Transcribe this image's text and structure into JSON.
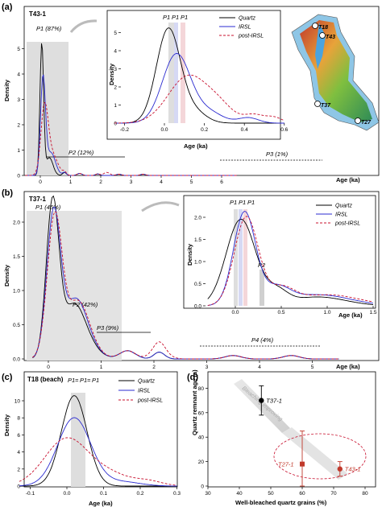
{
  "colors": {
    "quartz": "#000000",
    "irsl": "#2b2bd0",
    "post_irsl": "#c8102e",
    "shade": "#dedede",
    "map_sea": "#8ec6e6"
  },
  "legend": {
    "quartz": "Quartz",
    "irsl": "IRSL",
    "post_irsl": "post-IRSL"
  },
  "panels": {
    "a": {
      "label": "(a)",
      "sample": "T43-1",
      "p1": "P1 (87%)",
      "p2": "P2 (12%)",
      "p3": "P3 (1%)",
      "xlabel": "Age (ka)",
      "ylabel": "Density",
      "xticks": [
        "0",
        "1",
        "2",
        "3",
        "4",
        "5",
        "6"
      ],
      "yticks": [
        "0",
        "1",
        "2",
        "3",
        "4",
        "5"
      ],
      "inset": {
        "xlabel": "Age (ka)",
        "ylabel": "Density",
        "xticks": [
          "-0.2",
          "0.0",
          "0.2",
          "0.4",
          "0.6"
        ],
        "yticks": [
          "0",
          "1",
          "2",
          "3",
          "4",
          "5"
        ],
        "p_labels": [
          "P1",
          "P1",
          "P1"
        ]
      }
    },
    "b": {
      "label": "(b)",
      "sample": "T37-1",
      "p1": "P1 (45%)",
      "p2": "P2 (42%)",
      "p3": "P3 (9%)",
      "p4": "P4 (4%)",
      "xlabel": "Age (ka)",
      "ylabel": "Density",
      "xticks": [
        "0",
        "1",
        "2",
        "3",
        "4",
        "5"
      ],
      "yticks": [
        "0.0",
        "0.5",
        "1.0",
        "1.5",
        "2.0"
      ],
      "inset": {
        "xlabel": "Age (ka)",
        "ylabel": "Density",
        "xticks": [
          "0.0",
          "0.5",
          "1.0",
          "1.5"
        ],
        "yticks": [
          "0.0",
          "0.5",
          "1.0",
          "1.5",
          "2.0"
        ],
        "p_labels": [
          "P1",
          "P1",
          "P1"
        ],
        "p2": "P2"
      }
    },
    "c": {
      "label": "(c)",
      "sample": "T18 (beach)",
      "p_labels": [
        "P1",
        "=",
        "P1",
        "=",
        "P1"
      ],
      "xlabel": "Age (ka)",
      "ylabel": "Density",
      "xticks": [
        "-0.1",
        "0.0",
        "0.1",
        "0.2",
        "0.3"
      ],
      "yticks": [
        "0",
        "2",
        "4",
        "6",
        "8",
        "10"
      ]
    },
    "d": {
      "label": "(d)",
      "xlabel": "Well-bleached quartz grains (%)",
      "ylabel": "Quartz remnant age (a)",
      "xticks": [
        "30",
        "40",
        "50",
        "60",
        "70",
        "80"
      ],
      "yticks": [
        "0",
        "20",
        "40",
        "60",
        "80"
      ],
      "arrow_text": "Bleaching improving",
      "points": [
        {
          "name": "T37-1",
          "x": 47,
          "y": 70,
          "err": 12,
          "color": "#000000"
        },
        {
          "name": "T27-1",
          "x": 60,
          "y": 18,
          "err": 27,
          "color": "#c0392b"
        },
        {
          "name": "T43-1",
          "x": 72,
          "y": 14,
          "err": 6,
          "color": "#c0392b"
        }
      ]
    }
  },
  "map": {
    "labels": [
      "T18",
      "T43",
      "T37",
      "T27"
    ]
  },
  "chart_data": [
    {
      "type": "line",
      "panel": "a",
      "title": "T43-1",
      "xlabel": "Age (ka)",
      "ylabel": "Density",
      "xlim": [
        -0.5,
        6.8
      ],
      "ylim": [
        0,
        5.6
      ],
      "series": [
        {
          "name": "Quartz",
          "peak_x": 0.05,
          "peak_y": 5.2
        },
        {
          "name": "IRSL",
          "peak_x": 0.1,
          "peak_y": 3.8
        },
        {
          "name": "post-IRSL",
          "peak_x": 0.15,
          "peak_y": 2.6
        }
      ]
    },
    {
      "type": "line",
      "panel": "a-inset",
      "xlabel": "Age (ka)",
      "ylabel": "Density",
      "xlim": [
        -0.3,
        0.6
      ],
      "ylim": [
        0,
        5.5
      ],
      "series": [
        {
          "name": "Quartz",
          "peak_x": 0.02,
          "peak_y": 5.2
        },
        {
          "name": "IRSL",
          "peak_x": 0.06,
          "peak_y": 3.8
        },
        {
          "name": "post-IRSL",
          "peak_x": 0.12,
          "peak_y": 2.6
        }
      ]
    },
    {
      "type": "line",
      "panel": "b",
      "title": "T37-1",
      "xlabel": "Age (ka)",
      "ylabel": "Density",
      "xlim": [
        -0.5,
        5.7
      ],
      "ylim": [
        0,
        2.35
      ],
      "series": [
        {
          "name": "Quartz",
          "peak_x": 0.08,
          "peak_y": 2.25
        },
        {
          "name": "IRSL",
          "peak_x": 0.1,
          "peak_y": 2.1
        },
        {
          "name": "post-IRSL",
          "peak_x": 0.12,
          "peak_y": 2.05
        }
      ]
    },
    {
      "type": "line",
      "panel": "b-inset",
      "xlabel": "Age (ka)",
      "ylabel": "Density",
      "xlim": [
        -0.3,
        1.8
      ],
      "ylim": [
        0,
        2.25
      ],
      "series": [
        {
          "name": "Quartz",
          "peak_x": 0.06,
          "peak_y": 1.95
        },
        {
          "name": "IRSL",
          "peak_x": 0.1,
          "peak_y": 2.1
        },
        {
          "name": "post-IRSL",
          "peak_x": 0.12,
          "peak_y": 2.0
        }
      ]
    },
    {
      "type": "line",
      "panel": "c",
      "title": "T18 (beach)",
      "xlabel": "Age (ka)",
      "ylabel": "Density",
      "xlim": [
        -0.15,
        0.3
      ],
      "ylim": [
        0,
        11
      ],
      "series": [
        {
          "name": "Quartz",
          "peak_x": 0.02,
          "peak_y": 10.6
        },
        {
          "name": "IRSL",
          "peak_x": 0.02,
          "peak_y": 8.0
        },
        {
          "name": "post-IRSL",
          "peak_x": 0.0,
          "peak_y": 5.8
        }
      ]
    },
    {
      "type": "scatter",
      "panel": "d",
      "xlabel": "Well-bleached quartz grains (%)",
      "ylabel": "Quartz remnant age (a)",
      "xlim": [
        30,
        80
      ],
      "ylim": [
        0,
        90
      ],
      "points": [
        {
          "label": "T37-1",
          "x": 47,
          "y": 70,
          "yerr": 12
        },
        {
          "label": "T27-1",
          "x": 60,
          "y": 18,
          "yerr": 27
        },
        {
          "label": "T43-1",
          "x": 72,
          "y": 14,
          "yerr": 6
        }
      ]
    }
  ]
}
